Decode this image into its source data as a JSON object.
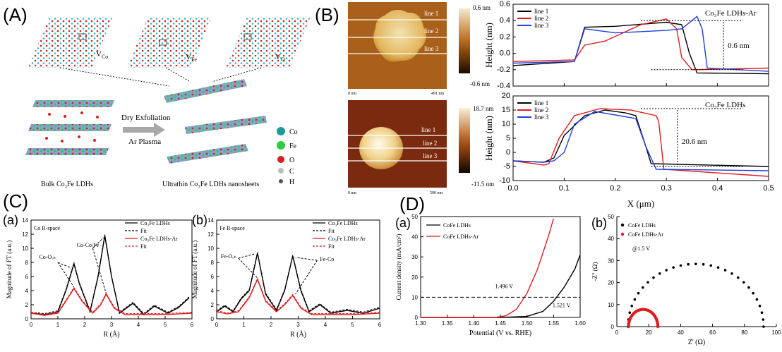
{
  "panels": {
    "A": "(A)",
    "B": "(B)",
    "C": "(C)",
    "D": "(D)",
    "Ca": "(a)",
    "Cb": "(b)",
    "Da": "(a)",
    "Db": "(b)"
  },
  "panelA": {
    "vacancy_labels": [
      "V",
      "Co",
      "V",
      "Fe",
      "V",
      "O"
    ],
    "process_1": "Dry Exfoliation",
    "process_2": "Ar Plasma",
    "bulk_label": "Bulk Co₃Fe LDHs",
    "nanosheet_label": "Ultrathin Co₃Fe LDHs nanosheets",
    "legend": [
      "Co",
      "Fe",
      "O",
      "C",
      "H"
    ],
    "legend_colors": [
      "#1e9a9a",
      "#2ecc40",
      "#d81e1e",
      "#bdbdbd",
      "#555555"
    ]
  },
  "afm": {
    "top": {
      "scale_max": "0.6 nm",
      "scale_min": "-0.6 nm",
      "axis_start": "0 nm",
      "axis_end": "491 nm",
      "lines": [
        "line 1",
        "line 2",
        "line 3"
      ]
    },
    "bottom": {
      "scale_max": "18.7 nm",
      "scale_min": "-11.5 nm",
      "axis_start": "0 nm",
      "axis_end": "500 nm",
      "lines": [
        "line 1",
        "line 2",
        "line 3"
      ]
    }
  },
  "chart_data": [
    {
      "id": "height-top",
      "type": "line",
      "title": "Co₃Fe LDHs-Ar",
      "xlabel": "",
      "ylabel": "Height (nm)",
      "xlim": [
        0,
        0.5
      ],
      "ylim": [
        -0.4,
        0.6
      ],
      "yticks": [
        "-0.4",
        "-0.2",
        "0.0",
        "0.2",
        "0.4",
        "0.6"
      ],
      "xticks": [
        "0.0",
        "0.1",
        "0.2",
        "0.3",
        "0.4",
        "0.5"
      ],
      "annotation": "0.6 nm",
      "series": [
        {
          "name": "line 1",
          "color": "#000000",
          "x": [
            0,
            0.12,
            0.14,
            0.2,
            0.3,
            0.33,
            0.345,
            0.36,
            0.5
          ],
          "y": [
            -0.15,
            -0.1,
            0.32,
            0.33,
            0.38,
            0.35,
            0.0,
            -0.24,
            -0.25
          ]
        },
        {
          "name": "line 2",
          "color": "#e31a1c",
          "x": [
            0,
            0.12,
            0.14,
            0.18,
            0.25,
            0.3,
            0.32,
            0.33,
            0.35,
            0.5
          ],
          "y": [
            -0.1,
            -0.08,
            0.1,
            0.15,
            0.35,
            0.42,
            0.3,
            -0.05,
            -0.2,
            -0.18
          ]
        },
        {
          "name": "line 3",
          "color": "#1f3fd9",
          "x": [
            0,
            0.12,
            0.14,
            0.2,
            0.3,
            0.33,
            0.36,
            0.37,
            0.38,
            0.5
          ],
          "y": [
            -0.12,
            -0.1,
            0.3,
            0.25,
            0.28,
            0.3,
            0.45,
            0.3,
            -0.18,
            -0.22
          ]
        }
      ]
    },
    {
      "id": "height-bottom",
      "type": "line",
      "title": "Co₃Fe LDHs",
      "xlabel": "X (μm)",
      "ylabel": "Height (nm)",
      "xlim": [
        0,
        0.5
      ],
      "ylim": [
        -10,
        20
      ],
      "yticks": [
        "-10",
        "-5",
        "0",
        "5",
        "10",
        "15",
        "20"
      ],
      "xticks": [
        "0.0",
        "0.1",
        "0.2",
        "0.3",
        "0.4",
        "0.5"
      ],
      "annotation": "20.6 nm",
      "series": [
        {
          "name": "line 1",
          "color": "#000000",
          "x": [
            0,
            0.06,
            0.08,
            0.1,
            0.14,
            0.18,
            0.22,
            0.24,
            0.26,
            0.27,
            0.5
          ],
          "y": [
            -3,
            -3.5,
            -2,
            6,
            13,
            15,
            14,
            13,
            2,
            -4,
            -5
          ]
        },
        {
          "name": "line 2",
          "color": "#e31a1c",
          "x": [
            0,
            0.06,
            0.07,
            0.09,
            0.12,
            0.17,
            0.23,
            0.28,
            0.285,
            0.295,
            0.5
          ],
          "y": [
            -3,
            -4.5,
            -4,
            5,
            13,
            15.5,
            15,
            13,
            11,
            -6,
            -8.5
          ]
        },
        {
          "name": "line 3",
          "color": "#1f3fd9",
          "x": [
            0,
            0.06,
            0.08,
            0.1,
            0.12,
            0.16,
            0.24,
            0.26,
            0.28,
            0.5
          ],
          "y": [
            -3,
            -3.5,
            -3,
            0,
            10,
            14.5,
            12,
            2,
            -6,
            -6.5
          ]
        }
      ]
    },
    {
      "id": "exafs-co",
      "type": "line",
      "title": "Co  R-space",
      "xlabel": "R (Å)",
      "ylabel": "Magnitude of FT (a.u.)",
      "xlim": [
        0,
        6
      ],
      "ylim": [
        0,
        14
      ],
      "yticks": [
        "0",
        "2",
        "4",
        "6",
        "8",
        "10",
        "12",
        "14"
      ],
      "xticks": [
        "0",
        "1",
        "2",
        "3",
        "4",
        "5",
        "6"
      ],
      "legend": [
        "Co₃Fe LDHs",
        "Fit",
        "Co₃Fe LDHs-Ar",
        "Fit"
      ],
      "annotations": [
        "Co-Oₒₕ",
        "Co-Co/Fe"
      ],
      "series": [
        {
          "name": "Co₃Fe LDHs",
          "color": "#000000",
          "x": [
            0,
            0.5,
            1,
            1.3,
            1.6,
            1.8,
            2.2,
            2.5,
            2.75,
            3,
            3.3,
            3.8,
            4.2,
            4.6,
            5.1,
            5.5,
            5.9
          ],
          "y": [
            0.8,
            0.6,
            1,
            4,
            7.8,
            5,
            1,
            6,
            11.8,
            6,
            0.8,
            2.2,
            0.6,
            1.8,
            0.8,
            1.6,
            3
          ]
        },
        {
          "name": "Co₃Fe LDHs-Ar",
          "color": "#e31a1c",
          "x": [
            0,
            0.5,
            1,
            1.3,
            1.6,
            1.9,
            2.3,
            2.6,
            2.8,
            3.1,
            3.5,
            4,
            5,
            6
          ],
          "y": [
            0.8,
            0.5,
            0.8,
            2.5,
            4.3,
            2.5,
            0.8,
            2,
            3.5,
            1.5,
            0.6,
            0.6,
            0.6,
            0.8
          ]
        }
      ]
    },
    {
      "id": "exafs-fe",
      "type": "line",
      "title": "Fe  R-space",
      "xlabel": "R (Å)",
      "ylabel": "Magnitude of FT (a.u.)",
      "xlim": [
        0,
        6
      ],
      "ylim": [
        0,
        14
      ],
      "yticks": [
        "0",
        "2",
        "4",
        "6",
        "8",
        "10",
        "12",
        "14"
      ],
      "xticks": [
        "0",
        "1",
        "2",
        "3",
        "4",
        "5",
        "6"
      ],
      "legend": [
        "Co₃Fe LDHs",
        "Fit",
        "Co₃Fe LDHs-Ar",
        "Fit"
      ],
      "annotations": [
        "Fe-Oₒₕ",
        "Fe-Co"
      ],
      "series": [
        {
          "name": "Co₃Fe LDHs",
          "color": "#000000",
          "x": [
            0,
            0.3,
            0.6,
            0.9,
            1.2,
            1.5,
            1.8,
            2.2,
            2.5,
            2.8,
            3.1,
            3.4,
            3.8,
            4.2,
            4.8,
            5.4,
            6
          ],
          "y": [
            1,
            1.8,
            1,
            2.8,
            4,
            9.3,
            3.5,
            1.2,
            4,
            8.9,
            4,
            1,
            2,
            0.8,
            1.2,
            0.8,
            1.5
          ]
        },
        {
          "name": "Co₃Fe LDHs-Ar",
          "color": "#e31a1c",
          "x": [
            0,
            0.4,
            0.8,
            1.2,
            1.5,
            1.8,
            2.2,
            2.5,
            2.8,
            3.1,
            3.5,
            4,
            5,
            6
          ],
          "y": [
            1,
            0.7,
            1,
            3,
            5.6,
            2.5,
            1,
            2,
            3.3,
            1.5,
            0.6,
            0.6,
            0.6,
            0.8
          ]
        }
      ]
    },
    {
      "id": "lsv",
      "type": "line",
      "title": "",
      "xlabel": "Potential (V vs. RHE)",
      "ylabel": "Current density (mA/cm²)",
      "xlim": [
        1.3,
        1.6
      ],
      "ylim": [
        0,
        50
      ],
      "yticks": [
        "0",
        "10",
        "20",
        "30",
        "40",
        "50"
      ],
      "xticks": [
        "1.30",
        "1.35",
        "1.40",
        "1.45",
        "1.50",
        "1.55",
        "1.60"
      ],
      "legend": [
        "CoFe LDHs",
        "CoFe LDHs-Ar"
      ],
      "annotations": [
        "1.496 V",
        "1.521 V"
      ],
      "reference_line": 10,
      "series": [
        {
          "name": "CoFe LDHs",
          "color": "#000000",
          "x": [
            1.3,
            1.45,
            1.5,
            1.53,
            1.55,
            1.57,
            1.59,
            1.6
          ],
          "y": [
            0,
            0,
            0.5,
            3,
            8,
            15,
            24,
            31
          ]
        },
        {
          "name": "CoFe LDHs-Ar",
          "color": "#e31a1c",
          "x": [
            1.3,
            1.44,
            1.46,
            1.48,
            1.5,
            1.52,
            1.54,
            1.55
          ],
          "y": [
            0,
            0,
            0.8,
            4,
            12,
            24,
            40,
            49
          ]
        }
      ]
    },
    {
      "id": "eis",
      "type": "scatter",
      "title": "",
      "xlabel": "Z' (Ω)",
      "ylabel": "-Z'' (Ω)",
      "xlim": [
        0,
        100
      ],
      "ylim": [
        0,
        50
      ],
      "yticks": [
        "0",
        "10",
        "20",
        "30",
        "40",
        "50"
      ],
      "xticks": [
        "0",
        "20",
        "40",
        "60",
        "80",
        "100"
      ],
      "legend": [
        "CoFe LDHs",
        "CoFe LDHs-Ar"
      ],
      "annotation": "@1.5 V",
      "series": [
        {
          "name": "CoFe LDHs",
          "color": "#000000",
          "center": 49.5,
          "radius": 42.5,
          "points": 28
        },
        {
          "name": "CoFe LDHs-Ar",
          "color": "#e31a1c",
          "center": 16.5,
          "radius": 9.2,
          "points": 34
        }
      ]
    }
  ]
}
